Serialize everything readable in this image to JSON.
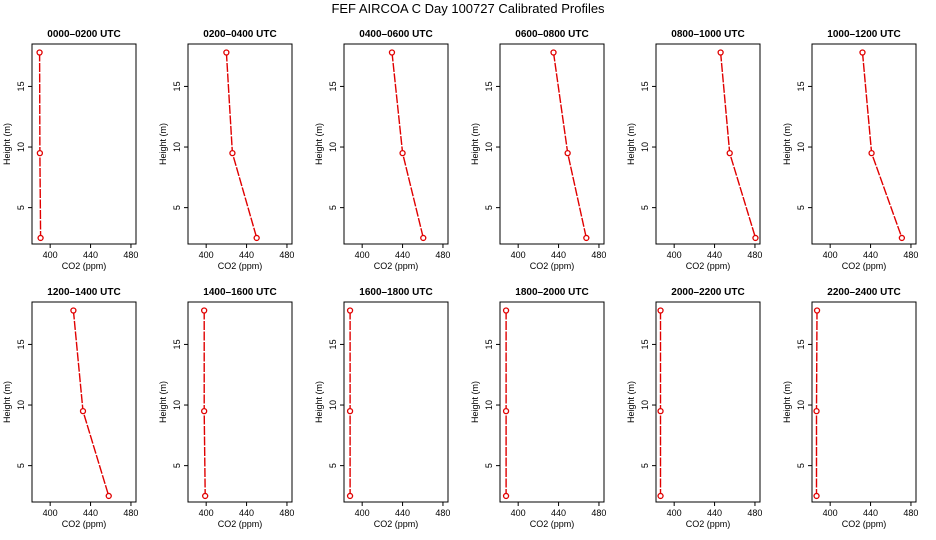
{
  "title": "FEF AIRCOA C  Day 100727  Calibrated Profiles",
  "colors": {
    "series": "#e00000",
    "frame": "#000000",
    "background": "#ffffff"
  },
  "chart_data": [
    {
      "type": "line",
      "title": "0000–0200 UTC",
      "xlabel": "CO2 (ppm)",
      "ylabel": "Height (m)",
      "xlim": [
        382,
        485
      ],
      "ylim": [
        2,
        18.5
      ],
      "xticks": [
        400,
        440,
        480
      ],
      "yticks": [
        5,
        10,
        15
      ],
      "x": [
        389.5,
        389.8,
        390.5
      ],
      "y": [
        17.8,
        9.5,
        2.5
      ]
    },
    {
      "type": "line",
      "title": "0200–0400 UTC",
      "xlabel": "CO2 (ppm)",
      "ylabel": "Height (m)",
      "xlim": [
        382,
        485
      ],
      "ylim": [
        2,
        18.5
      ],
      "xticks": [
        400,
        440,
        480
      ],
      "yticks": [
        5,
        10,
        15
      ],
      "x": [
        420,
        426,
        450
      ],
      "y": [
        17.8,
        9.5,
        2.5
      ]
    },
    {
      "type": "line",
      "title": "0400–0600 UTC",
      "xlabel": "CO2 (ppm)",
      "ylabel": "Height (m)",
      "xlim": [
        382,
        485
      ],
      "ylim": [
        2,
        18.5
      ],
      "xticks": [
        400,
        440,
        480
      ],
      "yticks": [
        5,
        10,
        15
      ],
      "x": [
        429.5,
        440,
        460.5
      ],
      "y": [
        17.8,
        9.5,
        2.5
      ]
    },
    {
      "type": "line",
      "title": "0600–0800 UTC",
      "xlabel": "CO2 (ppm)",
      "ylabel": "Height (m)",
      "xlim": [
        382,
        485
      ],
      "ylim": [
        2,
        18.5
      ],
      "xticks": [
        400,
        440,
        480
      ],
      "yticks": [
        5,
        10,
        15
      ],
      "x": [
        435,
        449,
        467.5
      ],
      "y": [
        17.8,
        9.5,
        2.5
      ]
    },
    {
      "type": "line",
      "title": "0800–1000 UTC",
      "xlabel": "CO2 (ppm)",
      "ylabel": "Height (m)",
      "xlim": [
        382,
        485
      ],
      "ylim": [
        2,
        18.5
      ],
      "xticks": [
        400,
        440,
        480
      ],
      "yticks": [
        5,
        10,
        15
      ],
      "x": [
        446,
        455,
        480.5
      ],
      "y": [
        17.8,
        9.5,
        2.5
      ]
    },
    {
      "type": "line",
      "title": "1000–1200 UTC",
      "xlabel": "CO2 (ppm)",
      "ylabel": "Height (m)",
      "xlim": [
        382,
        485
      ],
      "ylim": [
        2,
        18.5
      ],
      "xticks": [
        400,
        440,
        480
      ],
      "yticks": [
        5,
        10,
        15
      ],
      "x": [
        432,
        441,
        471
      ],
      "y": [
        17.8,
        9.5,
        2.5
      ]
    },
    {
      "type": "line",
      "title": "1200–1400 UTC",
      "xlabel": "CO2 (ppm)",
      "ylabel": "Height (m)",
      "xlim": [
        382,
        485
      ],
      "ylim": [
        2,
        18.5
      ],
      "xticks": [
        400,
        440,
        480
      ],
      "yticks": [
        5,
        10,
        15
      ],
      "x": [
        423,
        432.5,
        458
      ],
      "y": [
        17.8,
        9.5,
        2.5
      ]
    },
    {
      "type": "line",
      "title": "1400–1600 UTC",
      "xlabel": "CO2 (ppm)",
      "ylabel": "Height (m)",
      "xlim": [
        382,
        485
      ],
      "ylim": [
        2,
        18.5
      ],
      "xticks": [
        400,
        440,
        480
      ],
      "yticks": [
        5,
        10,
        15
      ],
      "x": [
        398,
        398,
        399
      ],
      "y": [
        17.8,
        9.5,
        2.5
      ]
    },
    {
      "type": "line",
      "title": "1600–1800 UTC",
      "xlabel": "CO2 (ppm)",
      "ylabel": "Height (m)",
      "xlim": [
        382,
        485
      ],
      "ylim": [
        2,
        18.5
      ],
      "xticks": [
        400,
        440,
        480
      ],
      "yticks": [
        5,
        10,
        15
      ],
      "x": [
        388,
        388,
        388
      ],
      "y": [
        17.8,
        9.5,
        2.5
      ]
    },
    {
      "type": "line",
      "title": "1800–2000 UTC",
      "xlabel": "CO2 (ppm)",
      "ylabel": "Height (m)",
      "xlim": [
        382,
        485
      ],
      "ylim": [
        2,
        18.5
      ],
      "xticks": [
        400,
        440,
        480
      ],
      "yticks": [
        5,
        10,
        15
      ],
      "x": [
        388,
        388,
        388
      ],
      "y": [
        17.8,
        9.5,
        2.5
      ]
    },
    {
      "type": "line",
      "title": "2000–2200 UTC",
      "xlabel": "CO2 (ppm)",
      "ylabel": "Height (m)",
      "xlim": [
        382,
        485
      ],
      "ylim": [
        2,
        18.5
      ],
      "xticks": [
        400,
        440,
        480
      ],
      "yticks": [
        5,
        10,
        15
      ],
      "x": [
        386.5,
        386.5,
        386.5
      ],
      "y": [
        17.8,
        9.5,
        2.5
      ]
    },
    {
      "type": "line",
      "title": "2200–2400 UTC",
      "xlabel": "CO2 (ppm)",
      "ylabel": "Height (m)",
      "xlim": [
        382,
        485
      ],
      "ylim": [
        2,
        18.5
      ],
      "xticks": [
        400,
        440,
        480
      ],
      "yticks": [
        5,
        10,
        15
      ],
      "x": [
        387,
        386.5,
        386.5
      ],
      "y": [
        17.8,
        9.5,
        2.5
      ]
    }
  ]
}
